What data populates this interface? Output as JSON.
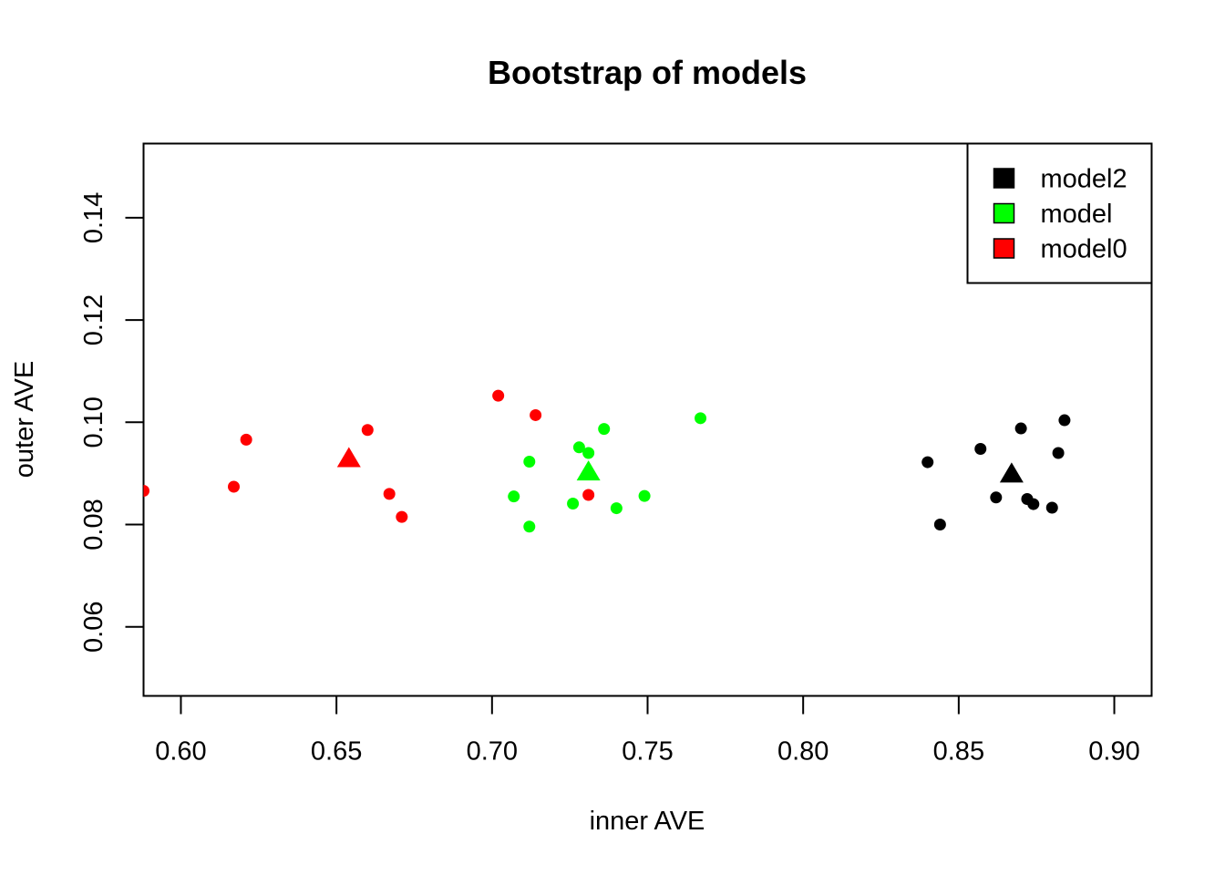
{
  "chart_data": {
    "type": "scatter",
    "title": "Bootstrap of models",
    "xlabel": "inner AVE",
    "ylabel": "outer AVE",
    "xlim": [
      0.588,
      0.912
    ],
    "ylim": [
      0.0465,
      0.1545
    ],
    "x_ticks": [
      "0.60",
      "0.65",
      "0.70",
      "0.75",
      "0.80",
      "0.85",
      "0.90"
    ],
    "y_ticks": [
      "0.06",
      "0.08",
      "0.10",
      "0.12",
      "0.14"
    ],
    "legend_position": "top-right",
    "grid": false,
    "series": [
      {
        "name": "model2",
        "color": "#000000",
        "points": [
          [
            0.84,
            0.0922
          ],
          [
            0.844,
            0.08
          ],
          [
            0.857,
            0.0948
          ],
          [
            0.862,
            0.0853
          ],
          [
            0.87,
            0.0988
          ],
          [
            0.872,
            0.085
          ],
          [
            0.874,
            0.084
          ],
          [
            0.88,
            0.0833
          ],
          [
            0.882,
            0.094
          ],
          [
            0.884,
            0.1004
          ]
        ],
        "centroid": [
          0.867,
          0.0898
        ]
      },
      {
        "name": "model",
        "color": "#00ff00",
        "points": [
          [
            0.707,
            0.0855
          ],
          [
            0.712,
            0.0923
          ],
          [
            0.712,
            0.0796
          ],
          [
            0.726,
            0.0841
          ],
          [
            0.728,
            0.0951
          ],
          [
            0.731,
            0.094
          ],
          [
            0.736,
            0.0987
          ],
          [
            0.74,
            0.0832
          ],
          [
            0.749,
            0.0856
          ],
          [
            0.767,
            0.1008
          ]
        ],
        "centroid": [
          0.731,
          0.0902
        ]
      },
      {
        "name": "model0",
        "color": "#ff0000",
        "points": [
          [
            0.588,
            0.0866
          ],
          [
            0.617,
            0.0874
          ],
          [
            0.621,
            0.0966
          ],
          [
            0.66,
            0.0985
          ],
          [
            0.667,
            0.086
          ],
          [
            0.671,
            0.0815
          ],
          [
            0.702,
            0.1052
          ],
          [
            0.714,
            0.1014
          ],
          [
            0.731,
            0.0858
          ]
        ],
        "centroid": [
          0.654,
          0.0928
        ]
      }
    ]
  }
}
